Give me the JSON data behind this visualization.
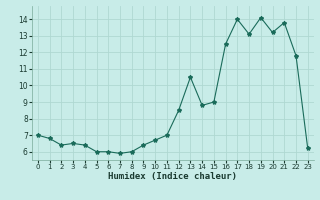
{
  "x": [
    0,
    1,
    2,
    3,
    4,
    5,
    6,
    7,
    8,
    9,
    10,
    11,
    12,
    13,
    14,
    15,
    16,
    17,
    18,
    19,
    20,
    21,
    22,
    23
  ],
  "y": [
    7.0,
    6.8,
    6.4,
    6.5,
    6.4,
    6.0,
    6.0,
    5.9,
    6.0,
    6.4,
    6.7,
    7.0,
    8.5,
    10.5,
    8.8,
    9.0,
    12.5,
    14.0,
    13.1,
    14.1,
    13.2,
    13.8,
    11.8,
    6.2
  ],
  "bg_color": "#c8ece8",
  "grid_color": "#afd8d2",
  "line_color": "#1a6b5a",
  "marker_color": "#1a6b5a",
  "xlabel": "Humidex (Indice chaleur)",
  "ylim": [
    5.5,
    14.8
  ],
  "xlim": [
    -0.5,
    23.5
  ],
  "yticks": [
    6,
    7,
    8,
    9,
    10,
    11,
    12,
    13,
    14
  ],
  "xticks": [
    0,
    1,
    2,
    3,
    4,
    5,
    6,
    7,
    8,
    9,
    10,
    11,
    12,
    13,
    14,
    15,
    16,
    17,
    18,
    19,
    20,
    21,
    22,
    23
  ]
}
